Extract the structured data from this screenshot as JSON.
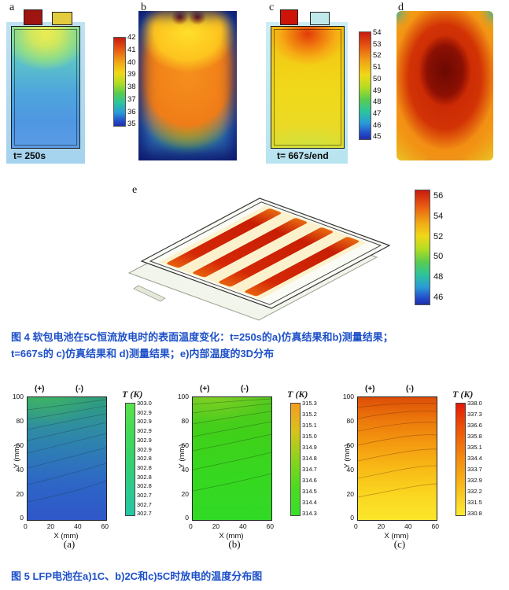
{
  "figure4": {
    "panel_a": {
      "label": "a",
      "time_label": "t= 250s",
      "colorbar_ticks": [
        "42",
        "41",
        "40",
        "39",
        "38",
        "37",
        "36",
        "35"
      ]
    },
    "panel_b": {
      "label": "b"
    },
    "panel_c": {
      "label": "c",
      "time_label": "t= 667s/end",
      "colorbar_ticks": [
        "54",
        "53",
        "52",
        "51",
        "50",
        "49",
        "48",
        "47",
        "46",
        "45"
      ]
    },
    "panel_d": {
      "label": "d"
    },
    "panel_e": {
      "label": "e",
      "colorbar_ticks": [
        "56",
        "54",
        "52",
        "50",
        "48",
        "46"
      ]
    },
    "caption_line1": "图 4  软包电池在5C恒流放电时的表面温度变化：t=250s的a)仿真结果和b)测量结果；",
    "caption_line2": "t=667s的 c)仿真结果和 d)测量结果；e)内部温度的3D分布"
  },
  "figure5": {
    "plots": [
      {
        "sublabel": "(a)",
        "plus": "(+)",
        "minus": "(-)",
        "colorbar_title": "T (K)",
        "xlabel": "X (mm)",
        "ylabel": "Y (mm)",
        "x_ticks": [
          "0",
          "20",
          "40",
          "60"
        ],
        "y_ticks": [
          "100",
          "80",
          "60",
          "40",
          "20",
          "0"
        ],
        "colorbar_ticks": [
          "303.0",
          "302.9",
          "302.9",
          "302.9",
          "302.9",
          "302.9",
          "302.8",
          "302.8",
          "302.8",
          "302.8",
          "302.7",
          "302.7",
          "302.7"
        ]
      },
      {
        "sublabel": "(b)",
        "plus": "(+)",
        "minus": "(-)",
        "colorbar_title": "T (K)",
        "xlabel": "X (mm)",
        "ylabel": "Y (mm)",
        "x_ticks": [
          "0",
          "20",
          "40",
          "60"
        ],
        "y_ticks": [
          "100",
          "80",
          "60",
          "40",
          "20",
          "0"
        ],
        "colorbar_ticks": [
          "315.3",
          "315.2",
          "315.1",
          "315.0",
          "314.9",
          "314.8",
          "314.7",
          "314.6",
          "314.5",
          "314.4",
          "314.3"
        ]
      },
      {
        "sublabel": "(c)",
        "plus": "(+)",
        "minus": "(-)",
        "colorbar_title": "T (K)",
        "xlabel": "X (mm)",
        "ylabel": "Y (mm)",
        "x_ticks": [
          "0",
          "20",
          "40",
          "60"
        ],
        "y_ticks": [
          "100",
          "80",
          "60",
          "40",
          "20",
          "0"
        ],
        "colorbar_ticks": [
          "338.0",
          "337.3",
          "336.6",
          "335.8",
          "335.1",
          "334.4",
          "333.7",
          "332.9",
          "332.2",
          "331.5",
          "330.8"
        ]
      }
    ],
    "caption": "图 5  LFP电池在a)1C、b)2C和c)5C时放电的温度分布图"
  },
  "chart_data": [
    {
      "type": "heatmap",
      "panel": "4a",
      "description": "simulated pouch-cell surface temperature at t=250s",
      "colorbar_ticks": [
        42,
        41,
        40,
        39,
        38,
        37,
        36,
        35
      ]
    },
    {
      "type": "heatmap",
      "panel": "4b",
      "description": "measured thermal image at t=250s"
    },
    {
      "type": "heatmap",
      "panel": "4c",
      "description": "simulated pouch-cell surface temperature at t=667s/end",
      "colorbar_ticks": [
        54,
        53,
        52,
        51,
        50,
        49,
        48,
        47,
        46,
        45
      ]
    },
    {
      "type": "heatmap",
      "panel": "4d",
      "description": "measured thermal image at t=667s/end"
    },
    {
      "type": "heatmap",
      "panel": "4e",
      "description": "3D internal temperature distribution",
      "colorbar_ticks": [
        56,
        54,
        52,
        50,
        48,
        46
      ]
    },
    {
      "type": "heatmap",
      "panel": "5a",
      "xlabel": "X (mm)",
      "ylabel": "Y (mm)",
      "x_range": [
        0,
        60
      ],
      "y_range": [
        0,
        100
      ],
      "T_K_range": [
        302.7,
        303.0
      ]
    },
    {
      "type": "heatmap",
      "panel": "5b",
      "xlabel": "X (mm)",
      "ylabel": "Y (mm)",
      "x_range": [
        0,
        60
      ],
      "y_range": [
        0,
        100
      ],
      "T_K_range": [
        314.3,
        315.3
      ]
    },
    {
      "type": "heatmap",
      "panel": "5c",
      "xlabel": "X (mm)",
      "ylabel": "Y (mm)",
      "x_range": [
        0,
        60
      ],
      "y_range": [
        0,
        100
      ],
      "T_K_range": [
        330.8,
        338.0
      ]
    }
  ]
}
